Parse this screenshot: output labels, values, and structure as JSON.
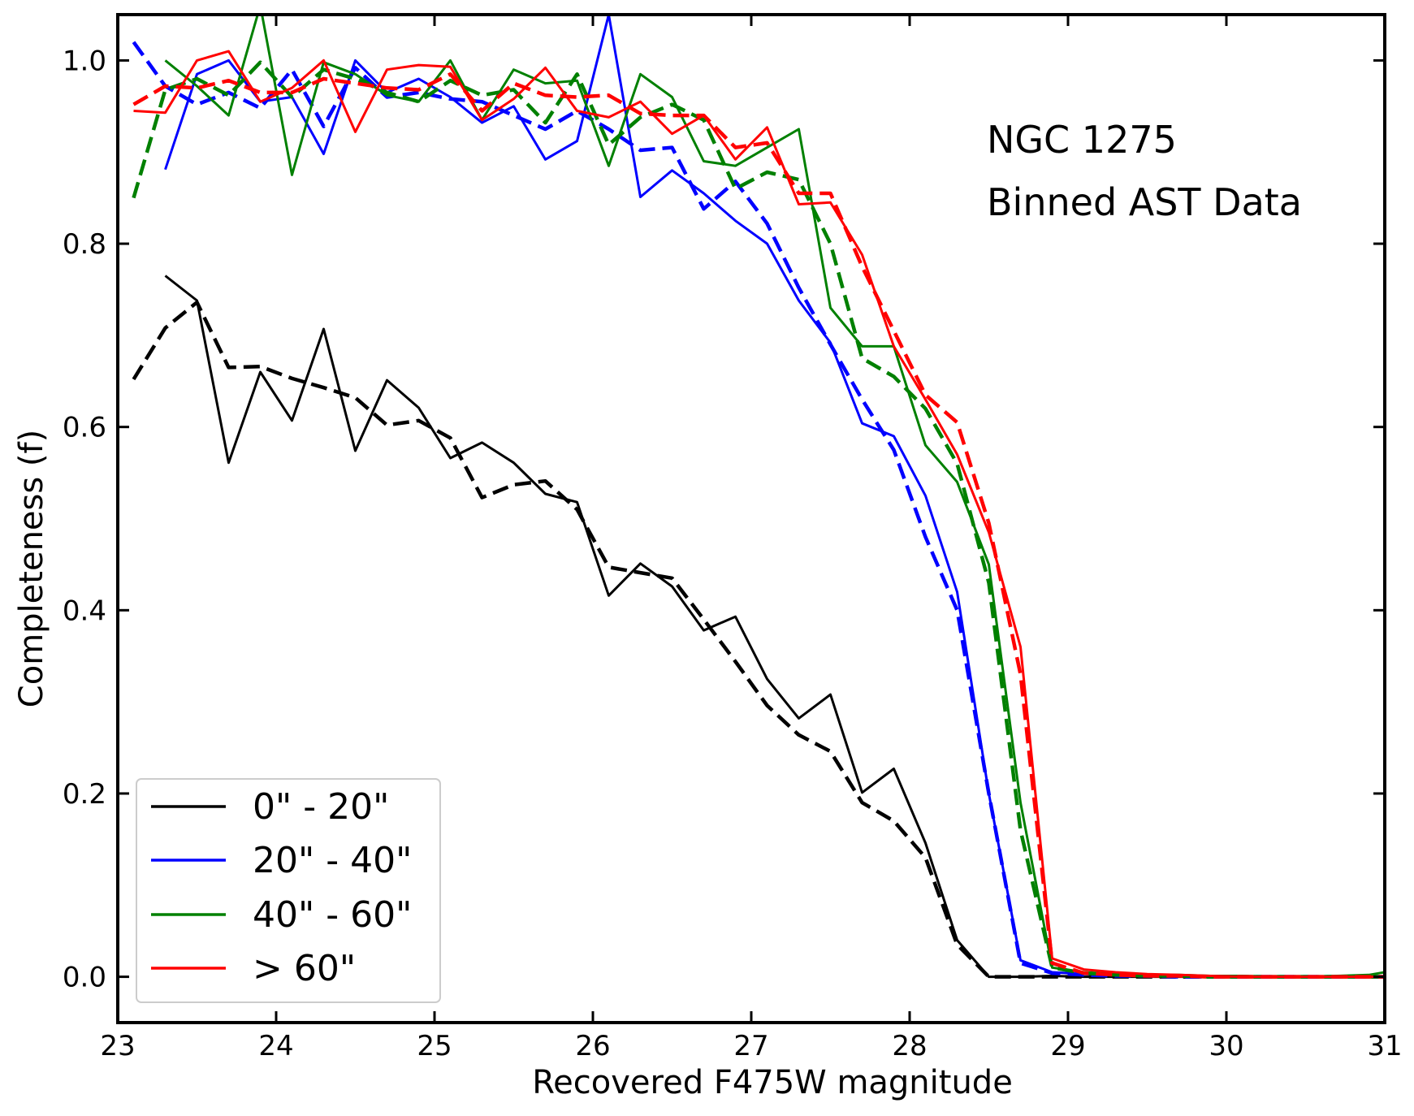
{
  "chart_data": {
    "type": "line",
    "title": "",
    "annotations": [
      "NGC 1275",
      "Binned AST Data"
    ],
    "xlabel": "Recovered F475W magnitude",
    "ylabel": "Completeness (f)",
    "xlim": [
      23,
      31
    ],
    "ylim": [
      -0.05,
      1.05
    ],
    "xticks": [
      23,
      24,
      25,
      26,
      27,
      28,
      29,
      30,
      31
    ],
    "xtick_labels": [
      "23",
      "24",
      "25",
      "26",
      "27",
      "28",
      "29",
      "30",
      "31"
    ],
    "yticks": [
      0.0,
      0.2,
      0.4,
      0.6,
      0.8,
      1.0
    ],
    "ytick_labels": [
      "0.0",
      "0.2",
      "0.4",
      "0.6",
      "0.8",
      "1.0"
    ],
    "grid": false,
    "legend_position": "lower-left",
    "legend": [
      {
        "label": "0\" - 20\"",
        "color": "#000000"
      },
      {
        "label": "20\" - 40\"",
        "color": "#0000ff"
      },
      {
        "label": "40\" - 60\"",
        "color": "#008000"
      },
      {
        "label": "> 60\"",
        "color": "#ff0000"
      }
    ],
    "series": [
      {
        "name": "0\" - 20\" binned",
        "color": "#000000",
        "style": "solid",
        "x": [
          23.3,
          23.5,
          23.7,
          23.9,
          24.1,
          24.3,
          24.5,
          24.7,
          24.9,
          25.1,
          25.3,
          25.5,
          25.7,
          25.9,
          26.1,
          26.3,
          26.5,
          26.7,
          26.9,
          27.1,
          27.3,
          27.5,
          27.7,
          27.9,
          28.1,
          28.3,
          28.5,
          28.7,
          28.9,
          29.1,
          29.3,
          29.5,
          29.7,
          29.9,
          30.1,
          30.3,
          30.5,
          30.7,
          30.9,
          31.0
        ],
        "y": [
          0.765,
          0.738,
          0.561,
          0.66,
          0.607,
          0.707,
          0.574,
          0.651,
          0.621,
          0.566,
          0.583,
          0.561,
          0.527,
          0.518,
          0.416,
          0.451,
          0.426,
          0.378,
          0.393,
          0.325,
          0.282,
          0.308,
          0.201,
          0.227,
          0.146,
          0.04,
          0.0,
          0.0,
          0.001,
          0.0,
          0.0,
          0.0,
          0.0,
          0.0,
          0.0,
          0.0,
          0.0,
          0.0,
          0.0,
          0.0
        ]
      },
      {
        "name": "0\" - 20\" fit",
        "color": "#000000",
        "style": "dashed",
        "x": [
          23.1,
          23.3,
          23.5,
          23.7,
          23.9,
          24.1,
          24.3,
          24.5,
          24.7,
          24.9,
          25.1,
          25.3,
          25.5,
          25.7,
          25.9,
          26.1,
          26.3,
          26.5,
          26.7,
          26.9,
          27.1,
          27.3,
          27.5,
          27.7,
          27.9,
          28.1,
          28.3,
          28.5,
          28.7,
          28.9,
          29.1,
          29.3,
          29.5,
          29.7,
          29.9,
          30.1,
          30.3,
          30.5,
          30.7,
          30.9,
          31.0
        ],
        "y": [
          0.652,
          0.708,
          0.736,
          0.665,
          0.666,
          0.653,
          0.643,
          0.632,
          0.602,
          0.607,
          0.588,
          0.523,
          0.537,
          0.541,
          0.51,
          0.447,
          0.441,
          0.435,
          0.39,
          0.344,
          0.296,
          0.264,
          0.246,
          0.19,
          0.17,
          0.13,
          0.035,
          0.0,
          0.0,
          0.0,
          0.0,
          0.0,
          0.0,
          0.0,
          0.0,
          0.0,
          0.0,
          0.0,
          0.0,
          0.0,
          0.0
        ]
      },
      {
        "name": "20\" - 40\" binned",
        "color": "#0000ff",
        "style": "solid",
        "x": [
          23.3,
          23.5,
          23.7,
          23.9,
          24.1,
          24.3,
          24.5,
          24.7,
          24.9,
          25.1,
          25.3,
          25.5,
          25.7,
          25.9,
          26.1,
          26.3,
          26.5,
          26.7,
          26.9,
          27.1,
          27.3,
          27.5,
          27.7,
          27.9,
          28.1,
          28.3,
          28.5,
          28.7,
          28.9,
          29.1,
          29.3,
          29.5,
          29.7,
          29.9,
          30.1,
          30.3,
          30.5,
          30.7,
          30.9,
          31.0
        ],
        "y": [
          0.881,
          0.985,
          1.0,
          0.955,
          0.96,
          0.898,
          1.0,
          0.965,
          0.98,
          0.96,
          0.932,
          0.95,
          0.892,
          0.912,
          1.05,
          0.851,
          0.88,
          0.855,
          0.825,
          0.8,
          0.738,
          0.692,
          0.604,
          0.59,
          0.525,
          0.42,
          0.2,
          0.018,
          0.005,
          0.003,
          0.002,
          0.001,
          0.001,
          0.001,
          0.0,
          0.0,
          0.0,
          0.0,
          0.0,
          0.0
        ]
      },
      {
        "name": "20\" - 40\" fit",
        "color": "#0000ff",
        "style": "dashed",
        "x": [
          23.1,
          23.3,
          23.5,
          23.7,
          23.9,
          24.1,
          24.3,
          24.5,
          24.7,
          24.9,
          25.1,
          25.3,
          25.5,
          25.7,
          25.9,
          26.1,
          26.3,
          26.5,
          26.7,
          26.9,
          27.1,
          27.3,
          27.5,
          27.7,
          27.9,
          28.1,
          28.3,
          28.5,
          28.7,
          28.9,
          29.1,
          29.3,
          29.5,
          29.7,
          29.9,
          30.1,
          30.3,
          30.5,
          30.7,
          30.9,
          31.0
        ],
        "y": [
          1.02,
          0.972,
          0.952,
          0.965,
          0.948,
          0.99,
          0.928,
          0.992,
          0.96,
          0.965,
          0.958,
          0.955,
          0.94,
          0.925,
          0.945,
          0.925,
          0.902,
          0.905,
          0.838,
          0.868,
          0.822,
          0.752,
          0.69,
          0.63,
          0.575,
          0.48,
          0.4,
          0.2,
          0.015,
          0.004,
          0.002,
          0.001,
          0.001,
          0.0,
          0.0,
          0.0,
          0.0,
          0.0,
          0.0,
          0.0,
          0.0
        ]
      },
      {
        "name": "40\" - 60\" binned",
        "color": "#008000",
        "style": "solid",
        "x": [
          23.3,
          23.5,
          23.7,
          23.9,
          24.1,
          24.3,
          24.5,
          24.7,
          24.9,
          25.1,
          25.3,
          25.5,
          25.7,
          25.9,
          26.1,
          26.3,
          26.5,
          26.7,
          26.9,
          27.1,
          27.3,
          27.5,
          27.7,
          27.9,
          28.1,
          28.3,
          28.5,
          28.7,
          28.9,
          29.1,
          29.3,
          29.5,
          29.7,
          29.9,
          30.1,
          30.3,
          30.5,
          30.7,
          30.9,
          31.0
        ],
        "y": [
          1.0,
          0.972,
          0.94,
          1.06,
          0.875,
          0.998,
          0.985,
          0.962,
          0.955,
          1.0,
          0.935,
          0.99,
          0.975,
          0.978,
          0.885,
          0.985,
          0.96,
          0.89,
          0.885,
          0.905,
          0.925,
          0.73,
          0.688,
          0.688,
          0.58,
          0.54,
          0.45,
          0.19,
          0.01,
          0.005,
          0.003,
          0.002,
          0.002,
          0.001,
          0.001,
          0.0,
          0.0,
          0.001,
          0.002,
          0.005
        ]
      },
      {
        "name": "40\" - 60\" fit",
        "color": "#008000",
        "style": "dashed",
        "x": [
          23.1,
          23.3,
          23.5,
          23.7,
          23.9,
          24.1,
          24.3,
          24.5,
          24.7,
          24.9,
          25.1,
          25.3,
          25.5,
          25.7,
          25.9,
          26.1,
          26.3,
          26.5,
          26.7,
          26.9,
          27.1,
          27.3,
          27.5,
          27.7,
          27.9,
          28.1,
          28.3,
          28.5,
          28.7,
          28.9,
          29.1,
          29.3,
          29.5,
          29.7,
          29.9,
          30.1,
          30.3,
          30.5,
          30.7,
          30.9,
          31.0
        ],
        "y": [
          0.85,
          0.968,
          0.98,
          0.962,
          0.998,
          0.96,
          0.99,
          0.98,
          0.965,
          0.955,
          0.978,
          0.962,
          0.968,
          0.932,
          0.985,
          0.908,
          0.938,
          0.952,
          0.935,
          0.86,
          0.878,
          0.87,
          0.8,
          0.675,
          0.655,
          0.62,
          0.56,
          0.43,
          0.16,
          0.01,
          0.004,
          0.002,
          0.001,
          0.001,
          0.0,
          0.0,
          0.0,
          0.0,
          0.0,
          0.0,
          0.0
        ]
      },
      {
        "name": "> 60\" binned",
        "color": "#ff0000",
        "style": "solid",
        "x": [
          23.1,
          23.3,
          23.5,
          23.7,
          23.9,
          24.1,
          24.3,
          24.5,
          24.7,
          24.9,
          25.1,
          25.3,
          25.5,
          25.7,
          25.9,
          26.1,
          26.3,
          26.5,
          26.7,
          26.9,
          27.1,
          27.3,
          27.5,
          27.7,
          27.9,
          28.1,
          28.3,
          28.5,
          28.7,
          28.9,
          29.1,
          29.3,
          29.5,
          29.7,
          29.9,
          30.1,
          30.3,
          30.5,
          30.7,
          30.9,
          31.0
        ],
        "y": [
          0.945,
          0.943,
          1.0,
          1.01,
          0.955,
          0.97,
          1.0,
          0.922,
          0.99,
          0.995,
          0.993,
          0.935,
          0.958,
          0.992,
          0.945,
          0.938,
          0.955,
          0.92,
          0.94,
          0.892,
          0.927,
          0.843,
          0.845,
          0.788,
          0.688,
          0.63,
          0.57,
          0.485,
          0.36,
          0.02,
          0.008,
          0.005,
          0.003,
          0.002,
          0.001,
          0.0,
          0.0,
          0.0,
          0.0,
          0.0,
          0.0
        ]
      },
      {
        "name": "> 60\" fit",
        "color": "#ff0000",
        "style": "dashed",
        "x": [
          23.1,
          23.3,
          23.5,
          23.7,
          23.9,
          24.1,
          24.3,
          24.5,
          24.7,
          24.9,
          25.1,
          25.3,
          25.5,
          25.7,
          25.9,
          26.1,
          26.3,
          26.5,
          26.7,
          26.9,
          27.1,
          27.3,
          27.5,
          27.7,
          27.9,
          28.1,
          28.3,
          28.5,
          28.7,
          28.9,
          29.1,
          29.3,
          29.5,
          29.7,
          29.9,
          30.1,
          30.3,
          30.5,
          30.7,
          30.9,
          31.0
        ],
        "y": [
          0.952,
          0.972,
          0.97,
          0.978,
          0.965,
          0.965,
          0.98,
          0.975,
          0.97,
          0.968,
          0.985,
          0.945,
          0.975,
          0.962,
          0.96,
          0.962,
          0.942,
          0.94,
          0.94,
          0.905,
          0.91,
          0.855,
          0.855,
          0.775,
          0.705,
          0.635,
          0.605,
          0.495,
          0.33,
          0.015,
          0.004,
          0.002,
          0.001,
          0.001,
          0.0,
          0.0,
          0.0,
          0.0,
          0.0,
          0.0,
          0.0
        ]
      }
    ]
  }
}
